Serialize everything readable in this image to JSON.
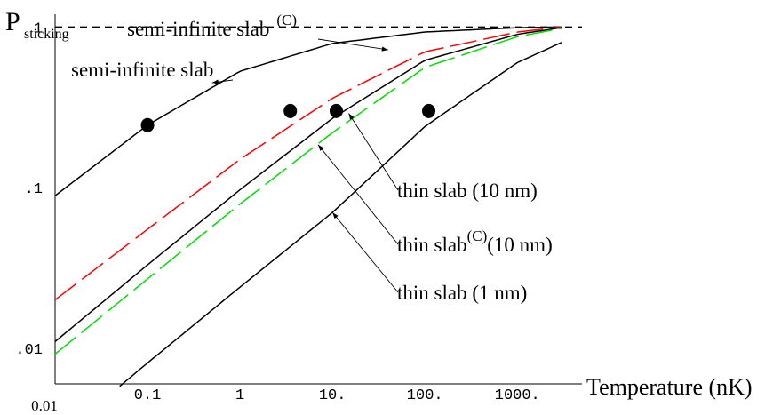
{
  "chart_data": {
    "type": "line",
    "title": "",
    "xlabel": "Temperature (nK)",
    "ylabel_main": "P",
    "ylabel_sub": "sticking",
    "xscale": "log",
    "yscale": "log",
    "xlim": [
      0.01,
      5000
    ],
    "ylim": [
      0.006,
      1.2
    ],
    "grid": false,
    "x_tick_labels": [
      {
        "x": 0.01,
        "label": "0.01"
      },
      {
        "x": 0.1,
        "label": "0.1"
      },
      {
        "x": 1,
        "label": "1"
      },
      {
        "x": 10,
        "label": "10."
      },
      {
        "x": 100,
        "label": "100."
      },
      {
        "x": 1000,
        "label": "1000."
      }
    ],
    "y_tick_labels": [
      {
        "y": 1,
        "label": "1"
      },
      {
        "y": 0.1,
        "label": ".1"
      },
      {
        "y": 0.01,
        "label": ".01"
      }
    ],
    "reference_line": {
      "y": 1,
      "style": "dashed",
      "color": "#000000"
    },
    "series": [
      {
        "name": "semi-infinite slab",
        "color": "#000000",
        "dash": "solid",
        "x": [
          0.01,
          0.1,
          1,
          10,
          100,
          1000,
          3000
        ],
        "y": [
          0.089,
          0.245,
          0.53,
          0.79,
          0.93,
          0.99,
          1.0
        ]
      },
      {
        "name": "semi-infinite slab (C)",
        "color": "#ff0000",
        "dash": "long-dash",
        "x": [
          0.01,
          0.1,
          1,
          10,
          100,
          1000,
          3000
        ],
        "y": [
          0.02,
          0.055,
          0.15,
          0.36,
          0.7,
          0.93,
          1.0
        ]
      },
      {
        "name": "thin slab (10 nm)",
        "color": "#000000",
        "dash": "solid",
        "x": [
          0.01,
          0.1,
          1,
          10,
          100,
          1000,
          3000
        ],
        "y": [
          0.011,
          0.033,
          0.097,
          0.27,
          0.62,
          0.9,
          0.99
        ]
      },
      {
        "name": "thin slab (C) (10 nm)",
        "color": "#00dd00",
        "dash": "long-dash",
        "x": [
          0.01,
          0.1,
          1,
          10,
          100,
          1000,
          3000
        ],
        "y": [
          0.0092,
          0.027,
          0.079,
          0.22,
          0.56,
          0.87,
          0.98
        ]
      },
      {
        "name": "thin slab (1 nm)",
        "color": "#000000",
        "dash": "solid",
        "x": [
          0.05,
          0.1,
          1,
          10,
          100,
          1000,
          3000
        ],
        "y": [
          0.0058,
          0.0081,
          0.024,
          0.07,
          0.24,
          0.6,
          0.8
        ]
      }
    ],
    "markers": [
      {
        "x": 0.1,
        "y": 0.245
      },
      {
        "x": 3.5,
        "y": 0.3
      },
      {
        "x": 11,
        "y": 0.3
      },
      {
        "x": 110,
        "y": 0.3
      }
    ],
    "annotations": [
      {
        "text": "semi-infinite slab",
        "sup": "(C)",
        "points_to": {
          "x": 40,
          "y": 0.72
        }
      },
      {
        "text": "semi-infinite slab",
        "sup": "",
        "points_to": {
          "x": 0.5,
          "y": 0.45
        }
      },
      {
        "text": "thin slab (10 nm)",
        "sup": "",
        "points_to": {
          "x": 15,
          "y": 0.29
        }
      },
      {
        "text": "thin slab",
        "sup": "(C)",
        "suffix": "(10 nm)",
        "points_to": {
          "x": 7,
          "y": 0.185
        }
      },
      {
        "text": "thin slab (1 nm)",
        "sup": "",
        "points_to": {
          "x": 10,
          "y": 0.07
        }
      }
    ]
  }
}
